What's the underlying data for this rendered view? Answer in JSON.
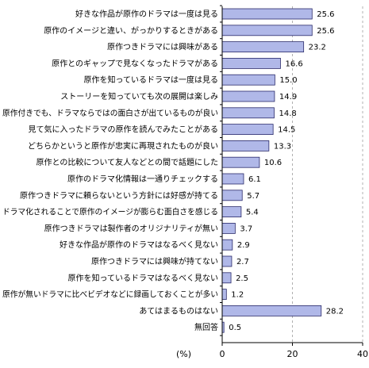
{
  "chart_data": {
    "type": "bar",
    "orientation": "horizontal",
    "categories": [
      "好きな作品が原作のドラマは一度は見る",
      "原作のイメージと違い、がっかりするときがある",
      "原作つきドラマには興味がある",
      "原作とのギャップで見なくなったドラマがある",
      "原作を知っているドラマは一度は見る",
      "ストーリーを知っていても次の展開は楽しみ",
      "原作付きでも、ドラマならではの面白さが出ているものが良い",
      "見て気に入ったドラマの原作を読んでみたことがある",
      "どちらかというと原作が忠実に再現されたものが良い",
      "原作との比較について友人などとの間で話題にした",
      "原作のドラマ化情報は一通りチェックする",
      "原作つきドラマに頼らないという方針には好感が持てる",
      "ドラマ化されることで原作のイメージが膨らむ面白さを感じる",
      "原作つきドラマは製作者のオリジナリティが無い",
      "好きな作品が原作のドラマはなるべく見ない",
      "原作つきドラマには興味が持てない",
      "原作を知っているドラマはなるべく見ない",
      "原作が無いドラマに比べビデオなどに録画しておくことが多い",
      "あてはまるものはない",
      "無回答"
    ],
    "values": [
      25.6,
      25.6,
      23.2,
      16.6,
      15.0,
      14.9,
      14.8,
      14.5,
      13.3,
      10.6,
      6.1,
      5.7,
      5.4,
      3.7,
      2.9,
      2.7,
      2.5,
      1.2,
      28.2,
      0.5
    ],
    "value_labels": [
      "25.6",
      "25.6",
      "23.2",
      "16.6",
      "15.0",
      "14.9",
      "14.8",
      "14.5",
      "13.3",
      "10.6",
      "6.1",
      "5.7",
      "5.4",
      "3.7",
      "2.9",
      "2.7",
      "2.5",
      "1.2",
      "28.2",
      "0.5"
    ],
    "xlabel": "(%)",
    "xlim": [
      0,
      40
    ],
    "xticks": [
      "0",
      "20",
      "40"
    ],
    "grid": "vertical-dashed",
    "legend": "none",
    "colors": {
      "bar": "#b0b8e8",
      "bar_stroke": "#2a2a6a",
      "grid": "#b0b0b0",
      "axis": "#000000"
    }
  }
}
